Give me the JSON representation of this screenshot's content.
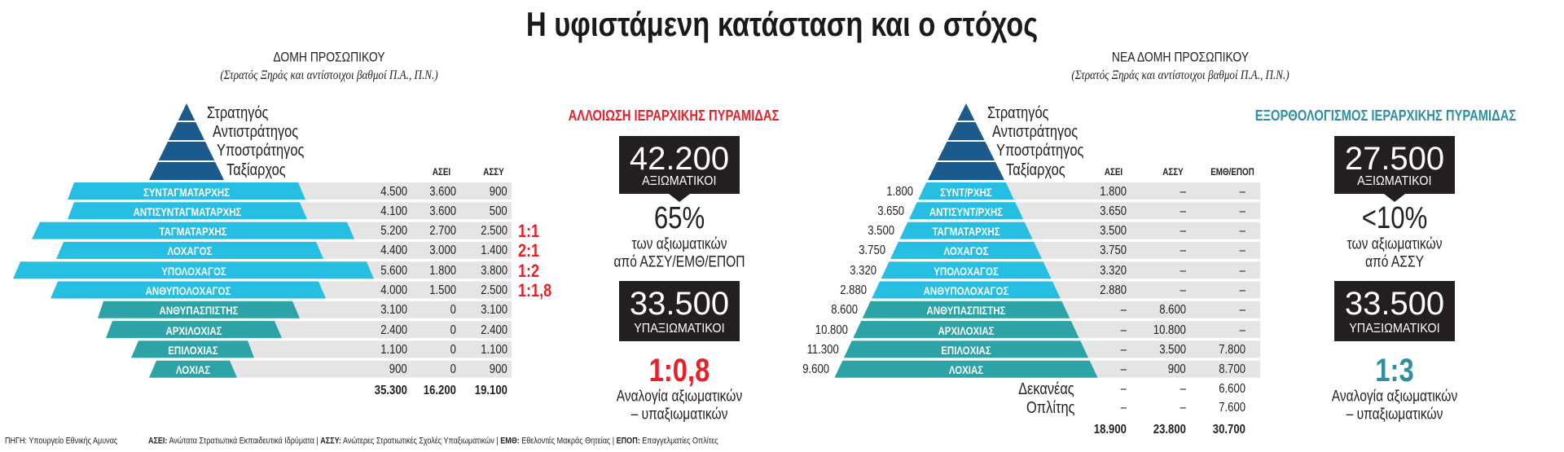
{
  "title": "Η υφιστάμενη κατάσταση και ο στόχος",
  "colors": {
    "general_ranks": "#1b5a8c",
    "officers": "#26bfe3",
    "ncos": "#2ba3a7",
    "row_bg": "#e5e5e5",
    "current_accent": "#e8202a",
    "target_accent": "#2e8fa0",
    "box_bg": "#231f20"
  },
  "current": {
    "header": "ΔΟΜΗ ΠΡΟΣΩΠΙΚΟΥ",
    "subtitle": "(Στρατός Ξηράς και αντίστοιχοι βαθμοί Π.Α., Π.Ν.)",
    "general_ranks": [
      "Στρατηγός",
      "Αντιστράτηγος",
      "Υποστράτηγος",
      "Ταξίαρχος"
    ],
    "columns": [
      "ΑΣΕΙ",
      "ΑΣΣΥ"
    ],
    "rows": [
      {
        "rank": "ΣΥΝΤΑΓΜΑΤΑΡΧΗΣ",
        "total": "4.500",
        "asei": "3.600",
        "assy": "900",
        "ratio": "",
        "group": "officers"
      },
      {
        "rank": "ΑΝΤΙΣΥΝΤΑΓΜΑΤΑΡΧΗΣ",
        "total": "4.100",
        "asei": "3.600",
        "assy": "500",
        "ratio": "",
        "group": "officers"
      },
      {
        "rank": "ΤΑΓΜΑΤΑΡΧΗΣ",
        "total": "5.200",
        "asei": "2.700",
        "assy": "2.500",
        "ratio": "1:1",
        "group": "officers"
      },
      {
        "rank": "ΛΟΧΑΓΟΣ",
        "total": "4.400",
        "asei": "3.000",
        "assy": "1.400",
        "ratio": "2:1",
        "group": "officers"
      },
      {
        "rank": "ΥΠΟΛΟΧΑΓΟΣ",
        "total": "5.600",
        "asei": "1.800",
        "assy": "3.800",
        "ratio": "1:2",
        "group": "officers"
      },
      {
        "rank": "ΑΝΘΥΠΟΛΟΧΑΓΟΣ",
        "total": "4.000",
        "asei": "1.500",
        "assy": "2.500",
        "ratio": "1:1,8",
        "group": "officers"
      },
      {
        "rank": "ΑΝΘΥΠΑΣΠΙΣΤΗΣ",
        "total": "3.100",
        "asei": "0",
        "assy": "3.100",
        "ratio": "",
        "group": "ncos"
      },
      {
        "rank": "ΑΡΧΙΛΟΧΙΑΣ",
        "total": "2.400",
        "asei": "0",
        "assy": "2.400",
        "ratio": "",
        "group": "ncos"
      },
      {
        "rank": "ΕΠΙΛΟΧΙΑΣ",
        "total": "1.100",
        "asei": "0",
        "assy": "1.100",
        "ratio": "",
        "group": "ncos"
      },
      {
        "rank": "ΛΟΧΙΑΣ",
        "total": "900",
        "asei": "0",
        "assy": "900",
        "ratio": "",
        "group": "ncos"
      }
    ],
    "totals": {
      "total": "35.300",
      "asei": "16.200",
      "assy": "19.100"
    },
    "panel": {
      "title": "ΑΛΛΟΙΩΣΗ ΙΕΡΑΡΧΙΚΗΣ ΠΥΡΑΜΙΔΑΣ",
      "officers_count": "42.200",
      "officers_label": "ΑΞΙΩΜΑΤΙΚΟΙ",
      "percent": "65%",
      "percent_line1": "των αξιωματικών",
      "percent_line2": "από ΑΣΣΥ/ΕΜΘ/ΕΠΟΠ",
      "ncos_count": "33.500",
      "ncos_label": "ΥΠΑΞΙΩΜΑΤΙΚΟΙ",
      "ratio": "1:0,8",
      "ratio_line1": "Αναλογία αξιωματικών",
      "ratio_line2": "– υπαξιωματικών"
    }
  },
  "target": {
    "header": "ΝΕΑ ΔΟΜΗ ΠΡΟΣΩΠΙΚΟΥ",
    "subtitle": "(Στρατός Ξηράς και αντίστοιχοι βαθμοί Π.Α., Π.Ν.)",
    "general_ranks": [
      "Στρατηγός",
      "Αντιστράτηγος",
      "Υποστράτηγος",
      "Ταξίαρχος"
    ],
    "columns": [
      "ΑΣΕΙ",
      "ΑΣΣΥ",
      "ΕΜΘ/ΕΠΟΠ"
    ],
    "rows": [
      {
        "rank": "ΣΥΝΤ/ΡΧΗΣ",
        "total": "1.800",
        "asei": "1.800",
        "assy": "–",
        "emth": "–",
        "group": "officers"
      },
      {
        "rank": "ΑΝΤΙΣΥΝΤ/ΡΧΗΣ",
        "total": "3.650",
        "asei": "3.650",
        "assy": "–",
        "emth": "–",
        "group": "officers"
      },
      {
        "rank": "ΤΑΓΜΑΤΑΡΧΗΣ",
        "total": "3.500",
        "asei": "3.500",
        "assy": "–",
        "emth": "–",
        "group": "officers"
      },
      {
        "rank": "ΛΟΧΑΓΟΣ",
        "total": "3.750",
        "asei": "3.750",
        "assy": "–",
        "emth": "–",
        "group": "officers"
      },
      {
        "rank": "ΥΠΟΛΟΧΑΓΟΣ",
        "total": "3.320",
        "asei": "3.320",
        "assy": "–",
        "emth": "–",
        "group": "officers"
      },
      {
        "rank": "ΑΝΘΥΠΟΛΟΧΑΓΟΣ",
        "total": "2.880",
        "asei": "2.880",
        "assy": "–",
        "emth": "–",
        "group": "officers"
      },
      {
        "rank": "ΑΝΘΥΠΑΣΠΙΣΤΗΣ",
        "total": "8.600",
        "asei": "–",
        "assy": "8.600",
        "emth": "–",
        "group": "ncos"
      },
      {
        "rank": "ΑΡΧΙΛΟΧΙΑΣ",
        "total": "10.800",
        "asei": "–",
        "assy": "10.800",
        "emth": "–",
        "group": "ncos"
      },
      {
        "rank": "ΕΠΙΛΟΧΙΑΣ",
        "total": "11.300",
        "asei": "–",
        "assy": "3.500",
        "emth": "7.800",
        "group": "ncos"
      },
      {
        "rank": "ΛΟΧΙΑΣ",
        "total": "9.600",
        "asei": "–",
        "assy": "900",
        "emth": "8.700",
        "group": "ncos"
      }
    ],
    "extra_rows": [
      {
        "rank": "Δεκανέας",
        "asei": "–",
        "assy": "–",
        "emth": "6.600"
      },
      {
        "rank": "Οπλίτης",
        "asei": "–",
        "assy": "–",
        "emth": "7.600"
      }
    ],
    "totals": {
      "asei": "18.900",
      "assy": "23.800",
      "emth": "30.700"
    },
    "panel": {
      "title": "ΕΞΟΡΘΟΛΟΓΙΣΜΟΣ ΙΕΡΑΡΧΙΚΗΣ ΠΥΡΑΜΙΔΑΣ",
      "officers_count": "27.500",
      "officers_label": "ΑΞΙΩΜΑΤΙΚΟΙ",
      "percent": "<10%",
      "percent_line1": "των αξιωματικών",
      "percent_line2": "από ΑΣΣΥ",
      "ncos_count": "33.500",
      "ncos_label": "ΥΠΑΞΙΩΜΑΤΙΚΟΙ",
      "ratio": "1:3",
      "ratio_line1": "Αναλογία αξιωματικών",
      "ratio_line2": "– υπαξιωματικών"
    }
  },
  "footer": {
    "source": "ΠΗΓΗ: Υπουργείο Εθνικής Αμυνας",
    "legend": [
      {
        "abbr": "ΑΣΕΙ:",
        "text": " Ανώτατα Στρατιωτικά Εκπαιδευτικά Ιδρύματα"
      },
      {
        "abbr": "ΑΣΣΥ:",
        "text": " Ανώτερες Στρατιωτικές Σχολές Υπαξιωματικών"
      },
      {
        "abbr": "ΕΜΘ:",
        "text": " Εθελοντές Μακράς Θητείας"
      },
      {
        "abbr": "ΕΠΟΠ:",
        "text": " Επαγγελματίες Οπλίτες"
      }
    ]
  }
}
